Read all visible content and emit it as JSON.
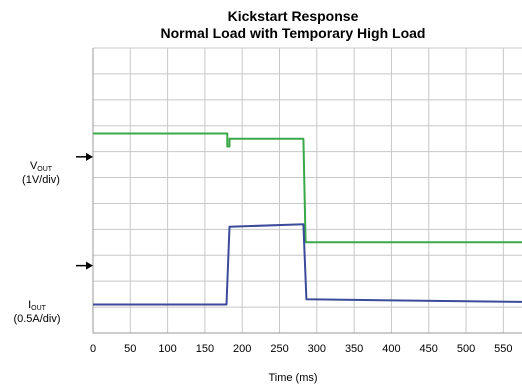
{
  "chart_data": {
    "type": "line",
    "title": "Kickstart Response",
    "subtitle": "Normal Load with Temporary High Load",
    "xlabel": "Time (ms)",
    "xlim": [
      0,
      575
    ],
    "xticks": [
      0,
      50,
      100,
      150,
      200,
      250,
      300,
      350,
      400,
      450,
      500,
      550
    ],
    "grid": true,
    "channels": [
      {
        "name": "V",
        "sub": "OUT",
        "scale": "(1V/div)",
        "color": "#3aa848",
        "marker_div": 2.6
      },
      {
        "name": "I",
        "sub": "OUT",
        "scale": "(0.5A/div)",
        "color": "#3c4a9a",
        "marker_div": 6.8
      }
    ],
    "series": [
      {
        "channel": "V",
        "color": "#3aa848",
        "unit": "div",
        "x": [
          0,
          180,
          180,
          183,
          183,
          282,
          285,
          575
        ],
        "y": [
          7.7,
          7.7,
          7.2,
          7.2,
          7.5,
          7.5,
          3.5,
          3.5
        ]
      },
      {
        "channel": "I",
        "color": "#3c4a9a",
        "unit": "div",
        "x": [
          0,
          179,
          183,
          282,
          286,
          575
        ],
        "y": [
          1.1,
          1.1,
          4.1,
          4.2,
          1.3,
          1.2
        ]
      }
    ]
  }
}
